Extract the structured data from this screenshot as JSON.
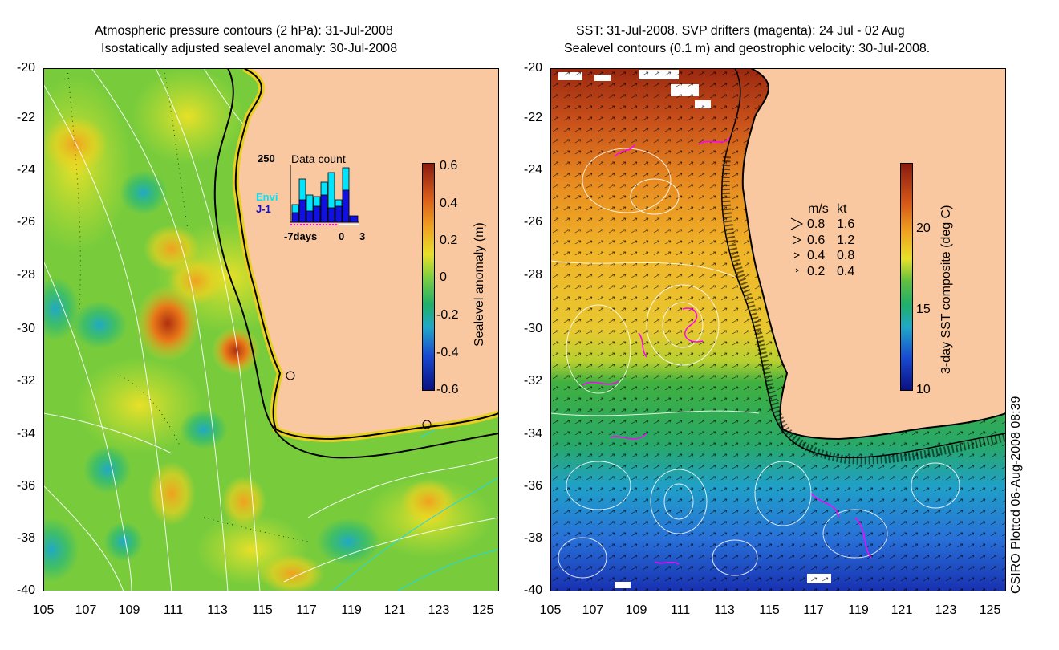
{
  "left_panel": {
    "title_line1": "Atmospheric pressure contours (2 hPa): 31-Jul-2008",
    "title_line2": "Isostatically adjusted sealevel anomaly: 30-Jul-2008",
    "colorbar_label": "Sealevel anomaly (m)",
    "colorbar_ticks": [
      "0.6",
      "0.4",
      "0.2",
      "0",
      "-0.2",
      "-0.4",
      "-0.6"
    ],
    "histogram": {
      "title": "Data count",
      "max_label": "250",
      "legend_envi": "Envi",
      "legend_j1": "J-1",
      "x_left": "-7days",
      "x_zero": "0",
      "x_right": "3",
      "envi_color": "#00e5ff",
      "j1_color": "#1010e0"
    }
  },
  "right_panel": {
    "title_line1": "SST: 31-Jul-2008. SVP drifters (magenta): 24 Jul - 02 Aug",
    "title_line2": "Sealevel contours (0.1 m) and geostrophic velocity: 30-Jul-2008.",
    "colorbar_label": "3-day SST composite (deg C)",
    "colorbar_ticks": [
      "20",
      "15",
      "10"
    ],
    "velocity_legend": {
      "header_ms": "m/s",
      "header_kt": "kt",
      "rows": [
        {
          "ms": "0.8",
          "kt": "1.6"
        },
        {
          "ms": "0.6",
          "kt": "1.2"
        },
        {
          "ms": "0.4",
          "kt": "0.8"
        },
        {
          "ms": "0.2",
          "kt": "0.4"
        }
      ]
    }
  },
  "axes": {
    "y_ticks": [
      "-20",
      "-22",
      "-24",
      "-26",
      "-28",
      "-30",
      "-32",
      "-34",
      "-36",
      "-38",
      "-40"
    ],
    "x_ticks": [
      "105",
      "107",
      "109",
      "111",
      "113",
      "115",
      "117",
      "119",
      "121",
      "123",
      "125"
    ]
  },
  "credit": "CSIRO Plotted 06-Aug-2008 08:39",
  "colors": {
    "land": "#fac8a0",
    "coast": "#000000",
    "contour": "#ffffff",
    "drifter": "#ff00ff"
  }
}
